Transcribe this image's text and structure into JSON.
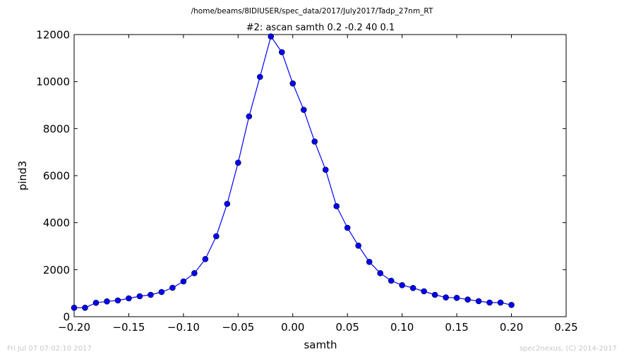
{
  "chart_data": {
    "type": "line",
    "suptitle": "/home/beams/8IDIUSER/spec_data/2017/July2017/Tadp_27nm_RT",
    "title": "#2: ascan  samth 0.2 -0.2  40 0.1",
    "xlabel": "samth",
    "ylabel": "pind3",
    "xlim": [
      -0.2,
      0.25
    ],
    "ylim": [
      0,
      12000
    ],
    "xticks": [
      -0.2,
      -0.15,
      -0.1,
      -0.05,
      0.0,
      0.05,
      0.1,
      0.15,
      0.2,
      0.25
    ],
    "xtick_labels": [
      "−0.20",
      "−0.15",
      "−0.10",
      "−0.05",
      "0.00",
      "0.05",
      "0.10",
      "0.15",
      "0.20",
      "0.25"
    ],
    "yticks": [
      0,
      2000,
      4000,
      6000,
      8000,
      10000,
      12000
    ],
    "ytick_labels": [
      "0",
      "2000",
      "4000",
      "6000",
      "8000",
      "10000",
      "12000"
    ],
    "grid": false,
    "color": "#0000ff",
    "marker": "circle",
    "x": [
      -0.2,
      -0.19,
      -0.18,
      -0.17,
      -0.16,
      -0.15,
      -0.14,
      -0.13,
      -0.12,
      -0.11,
      -0.1,
      -0.09,
      -0.08,
      -0.07,
      -0.06,
      -0.05,
      -0.04,
      -0.03,
      -0.02,
      -0.01,
      0.0,
      0.01,
      0.02,
      0.03,
      0.04,
      0.05,
      0.06,
      0.07,
      0.08,
      0.09,
      0.1,
      0.11,
      0.12,
      0.13,
      0.14,
      0.15,
      0.16,
      0.17,
      0.18,
      0.19,
      0.2
    ],
    "y": [
      380,
      380,
      590,
      650,
      690,
      780,
      870,
      930,
      1050,
      1230,
      1500,
      1850,
      2450,
      3420,
      4800,
      6550,
      8520,
      10200,
      11920,
      11250,
      9920,
      8800,
      7450,
      6250,
      4700,
      3780,
      3020,
      2330,
      1850,
      1530,
      1340,
      1220,
      1080,
      930,
      820,
      800,
      730,
      660,
      600,
      600,
      500
    ]
  },
  "footer": {
    "left": "Fri Jul 07 07:02:10 2017",
    "right": "spec2nexus, (C) 2014-2017"
  }
}
